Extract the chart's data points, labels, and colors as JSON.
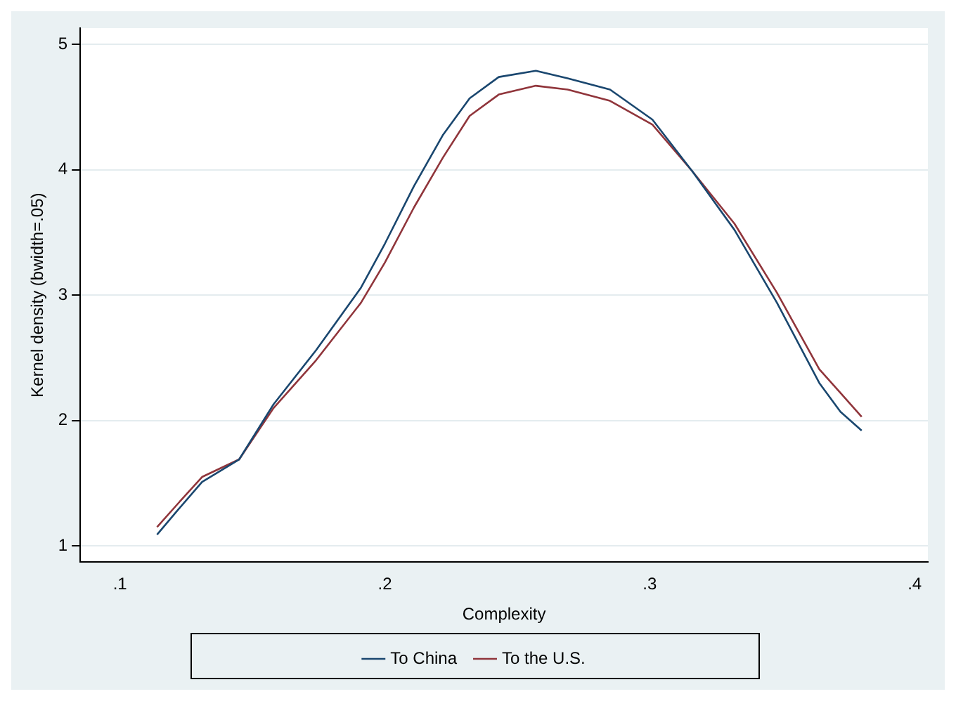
{
  "chart_data": {
    "type": "line",
    "xlabel": "Complexity",
    "ylabel": "Kernel density (bwidth=.05)",
    "xlim": [
      0.085,
      0.405
    ],
    "ylim": [
      0.87,
      5.13
    ],
    "xticks": [
      {
        "value": 0.1,
        "label": ".1"
      },
      {
        "value": 0.2,
        "label": ".2"
      },
      {
        "value": 0.3,
        "label": ".3"
      },
      {
        "value": 0.4,
        "label": ".4"
      }
    ],
    "yticks": [
      1,
      2,
      3,
      4,
      5
    ],
    "grid": "y",
    "legend": "bottom",
    "marker": "none",
    "line_style": "solid",
    "series": [
      {
        "name": "To China",
        "color": "#1a476f",
        "x": [
          0.114,
          0.122,
          0.131,
          0.145,
          0.158,
          0.174,
          0.191,
          0.2,
          0.211,
          0.222,
          0.232,
          0.243,
          0.257,
          0.269,
          0.285,
          0.301,
          0.316,
          0.332,
          0.348,
          0.364,
          0.372,
          0.38
        ],
        "values": [
          1.09,
          1.29,
          1.51,
          1.69,
          2.13,
          2.56,
          3.06,
          3.41,
          3.87,
          4.28,
          4.57,
          4.74,
          4.79,
          4.73,
          4.64,
          4.4,
          3.99,
          3.52,
          2.94,
          2.3,
          2.07,
          1.92
        ]
      },
      {
        "name": "To the U.S.",
        "color": "#90353b",
        "x": [
          0.114,
          0.122,
          0.131,
          0.145,
          0.158,
          0.174,
          0.191,
          0.2,
          0.211,
          0.222,
          0.232,
          0.243,
          0.257,
          0.269,
          0.285,
          0.301,
          0.316,
          0.332,
          0.348,
          0.364,
          0.372,
          0.38
        ],
        "values": [
          1.15,
          1.34,
          1.55,
          1.69,
          2.1,
          2.48,
          2.94,
          3.26,
          3.7,
          4.1,
          4.43,
          4.6,
          4.67,
          4.64,
          4.55,
          4.36,
          3.99,
          3.57,
          3.02,
          2.41,
          2.22,
          2.03
        ]
      }
    ]
  }
}
